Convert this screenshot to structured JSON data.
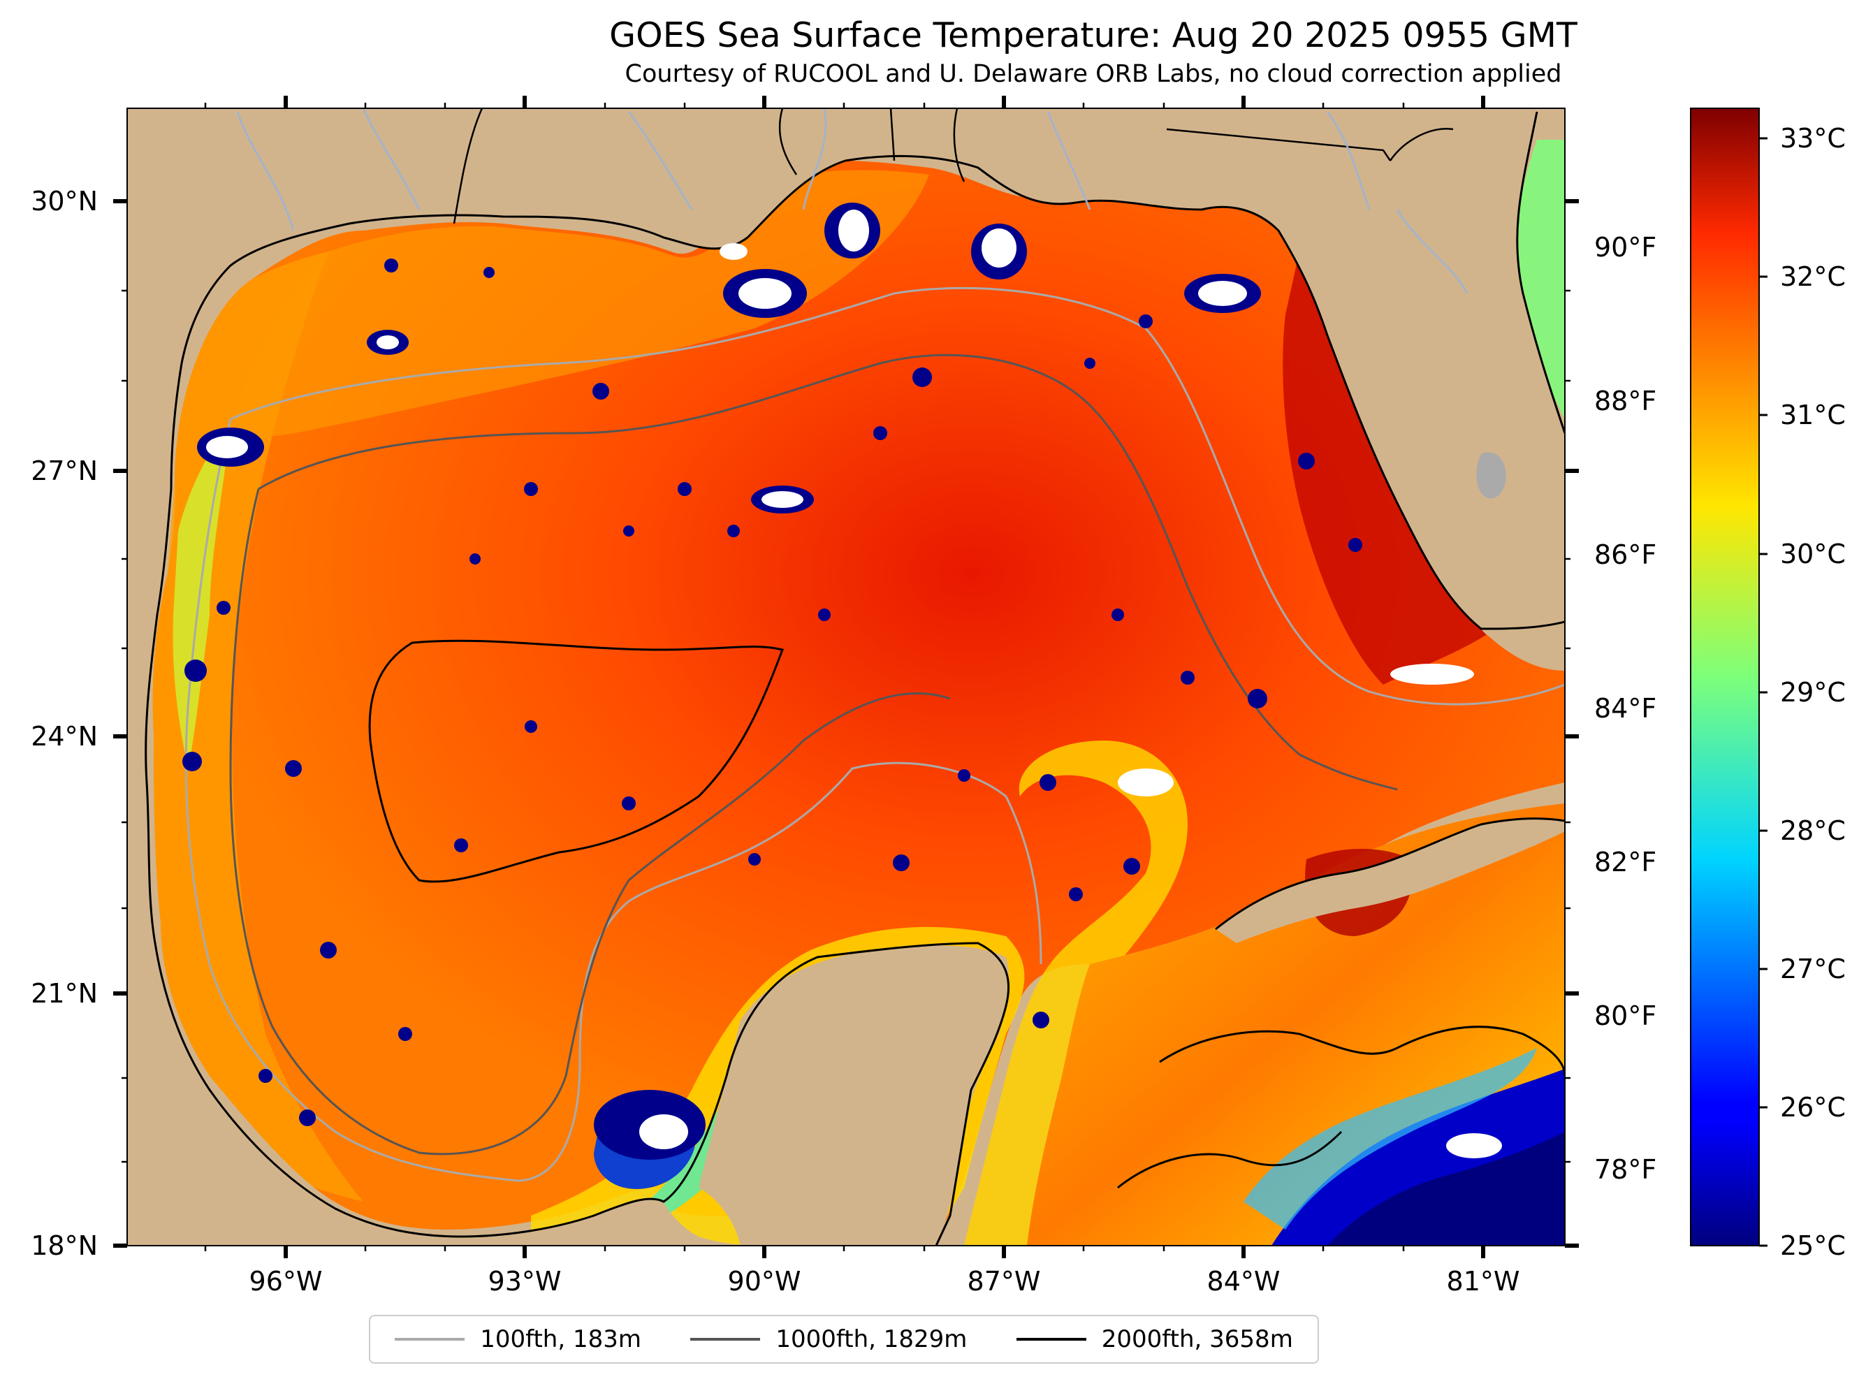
{
  "title": "GOES Sea Surface Temperature: Aug 20 2025 0955 GMT",
  "subtitle": "Courtesy of RUCOOL and U. Delaware ORB Labs, no cloud correction applied",
  "map": {
    "lon_range": [
      -98,
      -80
    ],
    "lat_range": [
      18,
      31
    ],
    "lat_labels": [
      {
        "lat": 30,
        "label": "30°N"
      },
      {
        "lat": 27,
        "label": "27°N"
      },
      {
        "lat": 24,
        "label": "24°N"
      },
      {
        "lat": 21,
        "label": "21°N"
      },
      {
        "lat": 18,
        "label": "18°N"
      }
    ],
    "lon_labels": [
      {
        "lon": -96,
        "label": "96°W"
      },
      {
        "lon": -93,
        "label": "93°W"
      },
      {
        "lon": -90,
        "label": "90°W"
      },
      {
        "lon": -87,
        "label": "87°W"
      },
      {
        "lon": -84,
        "label": "84°W"
      },
      {
        "lon": -81,
        "label": "81°W"
      }
    ],
    "fahrenheit_labels": [
      {
        "f": 90,
        "label": "90°F"
      },
      {
        "f": 88,
        "label": "88°F"
      },
      {
        "f": 86,
        "label": "86°F"
      },
      {
        "f": 84,
        "label": "84°F"
      },
      {
        "f": 82,
        "label": "82°F"
      },
      {
        "f": 80,
        "label": "80°F"
      },
      {
        "f": 78,
        "label": "78°F"
      }
    ],
    "colors": {
      "land": "#d2b48c",
      "water_cold": "#00008b",
      "water_warm": "#ff3000",
      "cloud": "#ffffff"
    }
  },
  "colorbar": {
    "min_c": 25,
    "max_c": 33.2,
    "labels": [
      {
        "c": 33,
        "label": "33°C"
      },
      {
        "c": 32,
        "label": "32°C"
      },
      {
        "c": 31,
        "label": "31°C"
      },
      {
        "c": 30,
        "label": "30°C"
      },
      {
        "c": 29,
        "label": "29°C"
      },
      {
        "c": 28,
        "label": "28°C"
      },
      {
        "c": 27,
        "label": "27°C"
      },
      {
        "c": 26,
        "label": "26°C"
      },
      {
        "c": 25,
        "label": "25°C"
      }
    ],
    "colormap": "jet"
  },
  "legend": {
    "items": [
      {
        "label": "100fth, 183m",
        "color": "#aaaaaa"
      },
      {
        "label": "1000fth, 1829m",
        "color": "#555555"
      },
      {
        "label": "2000fth, 3658m",
        "color": "#000000"
      }
    ]
  }
}
